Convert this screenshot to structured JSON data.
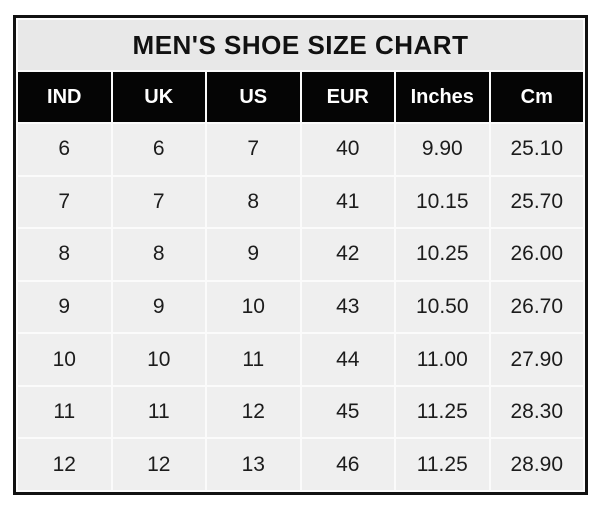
{
  "title": "MEN'S SHOE SIZE CHART",
  "colors": {
    "border": "#111111",
    "title_bg": "#e8e8e8",
    "header_bg": "#050505",
    "header_text": "#ffffff",
    "cell_bg": "#efefef",
    "cell_text": "#1c1c1c",
    "grid": "#fbfbfb"
  },
  "chart_data": {
    "type": "table",
    "title": "MEN'S SHOE SIZE CHART",
    "columns": [
      "IND",
      "UK",
      "US",
      "EUR",
      "Inches",
      "Cm"
    ],
    "rows": [
      [
        "6",
        "6",
        "7",
        "40",
        "9.90",
        "25.10"
      ],
      [
        "7",
        "7",
        "8",
        "41",
        "10.15",
        "25.70"
      ],
      [
        "8",
        "8",
        "9",
        "42",
        "10.25",
        "26.00"
      ],
      [
        "9",
        "9",
        "10",
        "43",
        "10.50",
        "26.70"
      ],
      [
        "10",
        "10",
        "11",
        "44",
        "11.00",
        "27.90"
      ],
      [
        "11",
        "11",
        "12",
        "45",
        "11.25",
        "28.30"
      ],
      [
        "12",
        "12",
        "13",
        "46",
        "11.25",
        "28.90"
      ]
    ]
  }
}
